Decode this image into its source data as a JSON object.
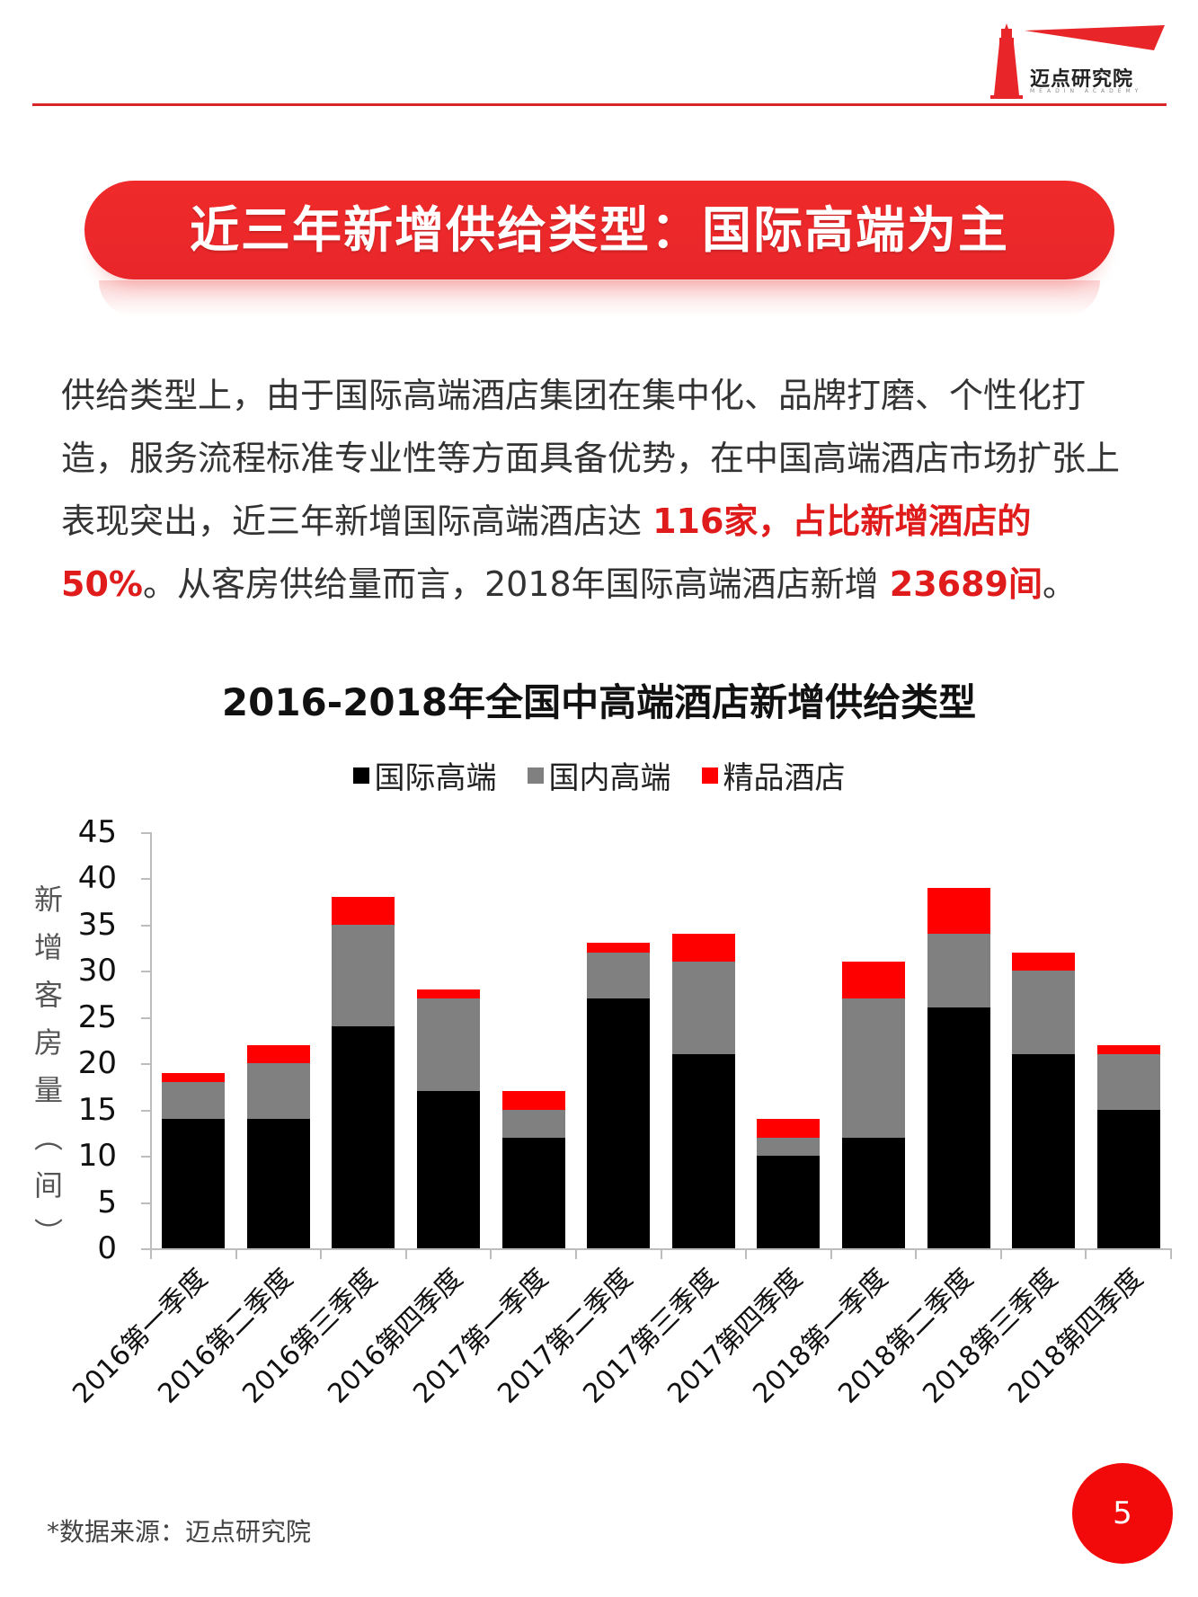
{
  "brand": {
    "name": "迈点研究院",
    "subtitle": "MEADIN ACADEMY",
    "accent_color": "#e8262a"
  },
  "banner": {
    "title": "近三年新增供给类型：国际高端为主"
  },
  "paragraph": {
    "part1": "供给类型上，由于国际高端酒店集团在集中化、品牌打磨、个性化打造，服务流程标准专业性等方面具备优势，在中国高端酒店市场扩张上表现突出，近三年新增国际高端酒店达 ",
    "highlight1": "116家，占比新增酒店的50%",
    "part2": "。从客房供给量而言，2018年国际高端酒店新增 ",
    "highlight2": "23689间",
    "part3": "。"
  },
  "chart_data": {
    "type": "bar",
    "stacked": true,
    "title": "2016-2018年全国中高端酒店新增供给类型",
    "xlabel": "",
    "ylabel": "新增客房量（间）",
    "ylim": [
      0,
      45
    ],
    "yticks": [
      0,
      5,
      10,
      15,
      20,
      25,
      30,
      35,
      40,
      45
    ],
    "grid": false,
    "legend_position": "top",
    "categories": [
      "2016第一季度",
      "2016第二季度",
      "2016第三季度",
      "2016第四季度",
      "2017第一季度",
      "2017第二季度",
      "2017第三季度",
      "2017第四季度",
      "2018第一季度",
      "2018第二季度",
      "2018第三季度",
      "2018第四季度"
    ],
    "series": [
      {
        "name": "国际高端",
        "color": "#000000",
        "values": [
          14,
          14,
          24,
          17,
          12,
          27,
          21,
          10,
          12,
          26,
          21,
          15
        ]
      },
      {
        "name": "国内高端",
        "color": "#808080",
        "values": [
          4,
          6,
          11,
          10,
          3,
          5,
          10,
          2,
          15,
          8,
          9,
          6
        ]
      },
      {
        "name": "精品酒店",
        "color": "#ff0000",
        "values": [
          1,
          2,
          3,
          1,
          2,
          1,
          3,
          2,
          4,
          5,
          2,
          1
        ]
      }
    ]
  },
  "footer": {
    "source": "*数据来源：迈点研究院",
    "page_number": "5"
  }
}
